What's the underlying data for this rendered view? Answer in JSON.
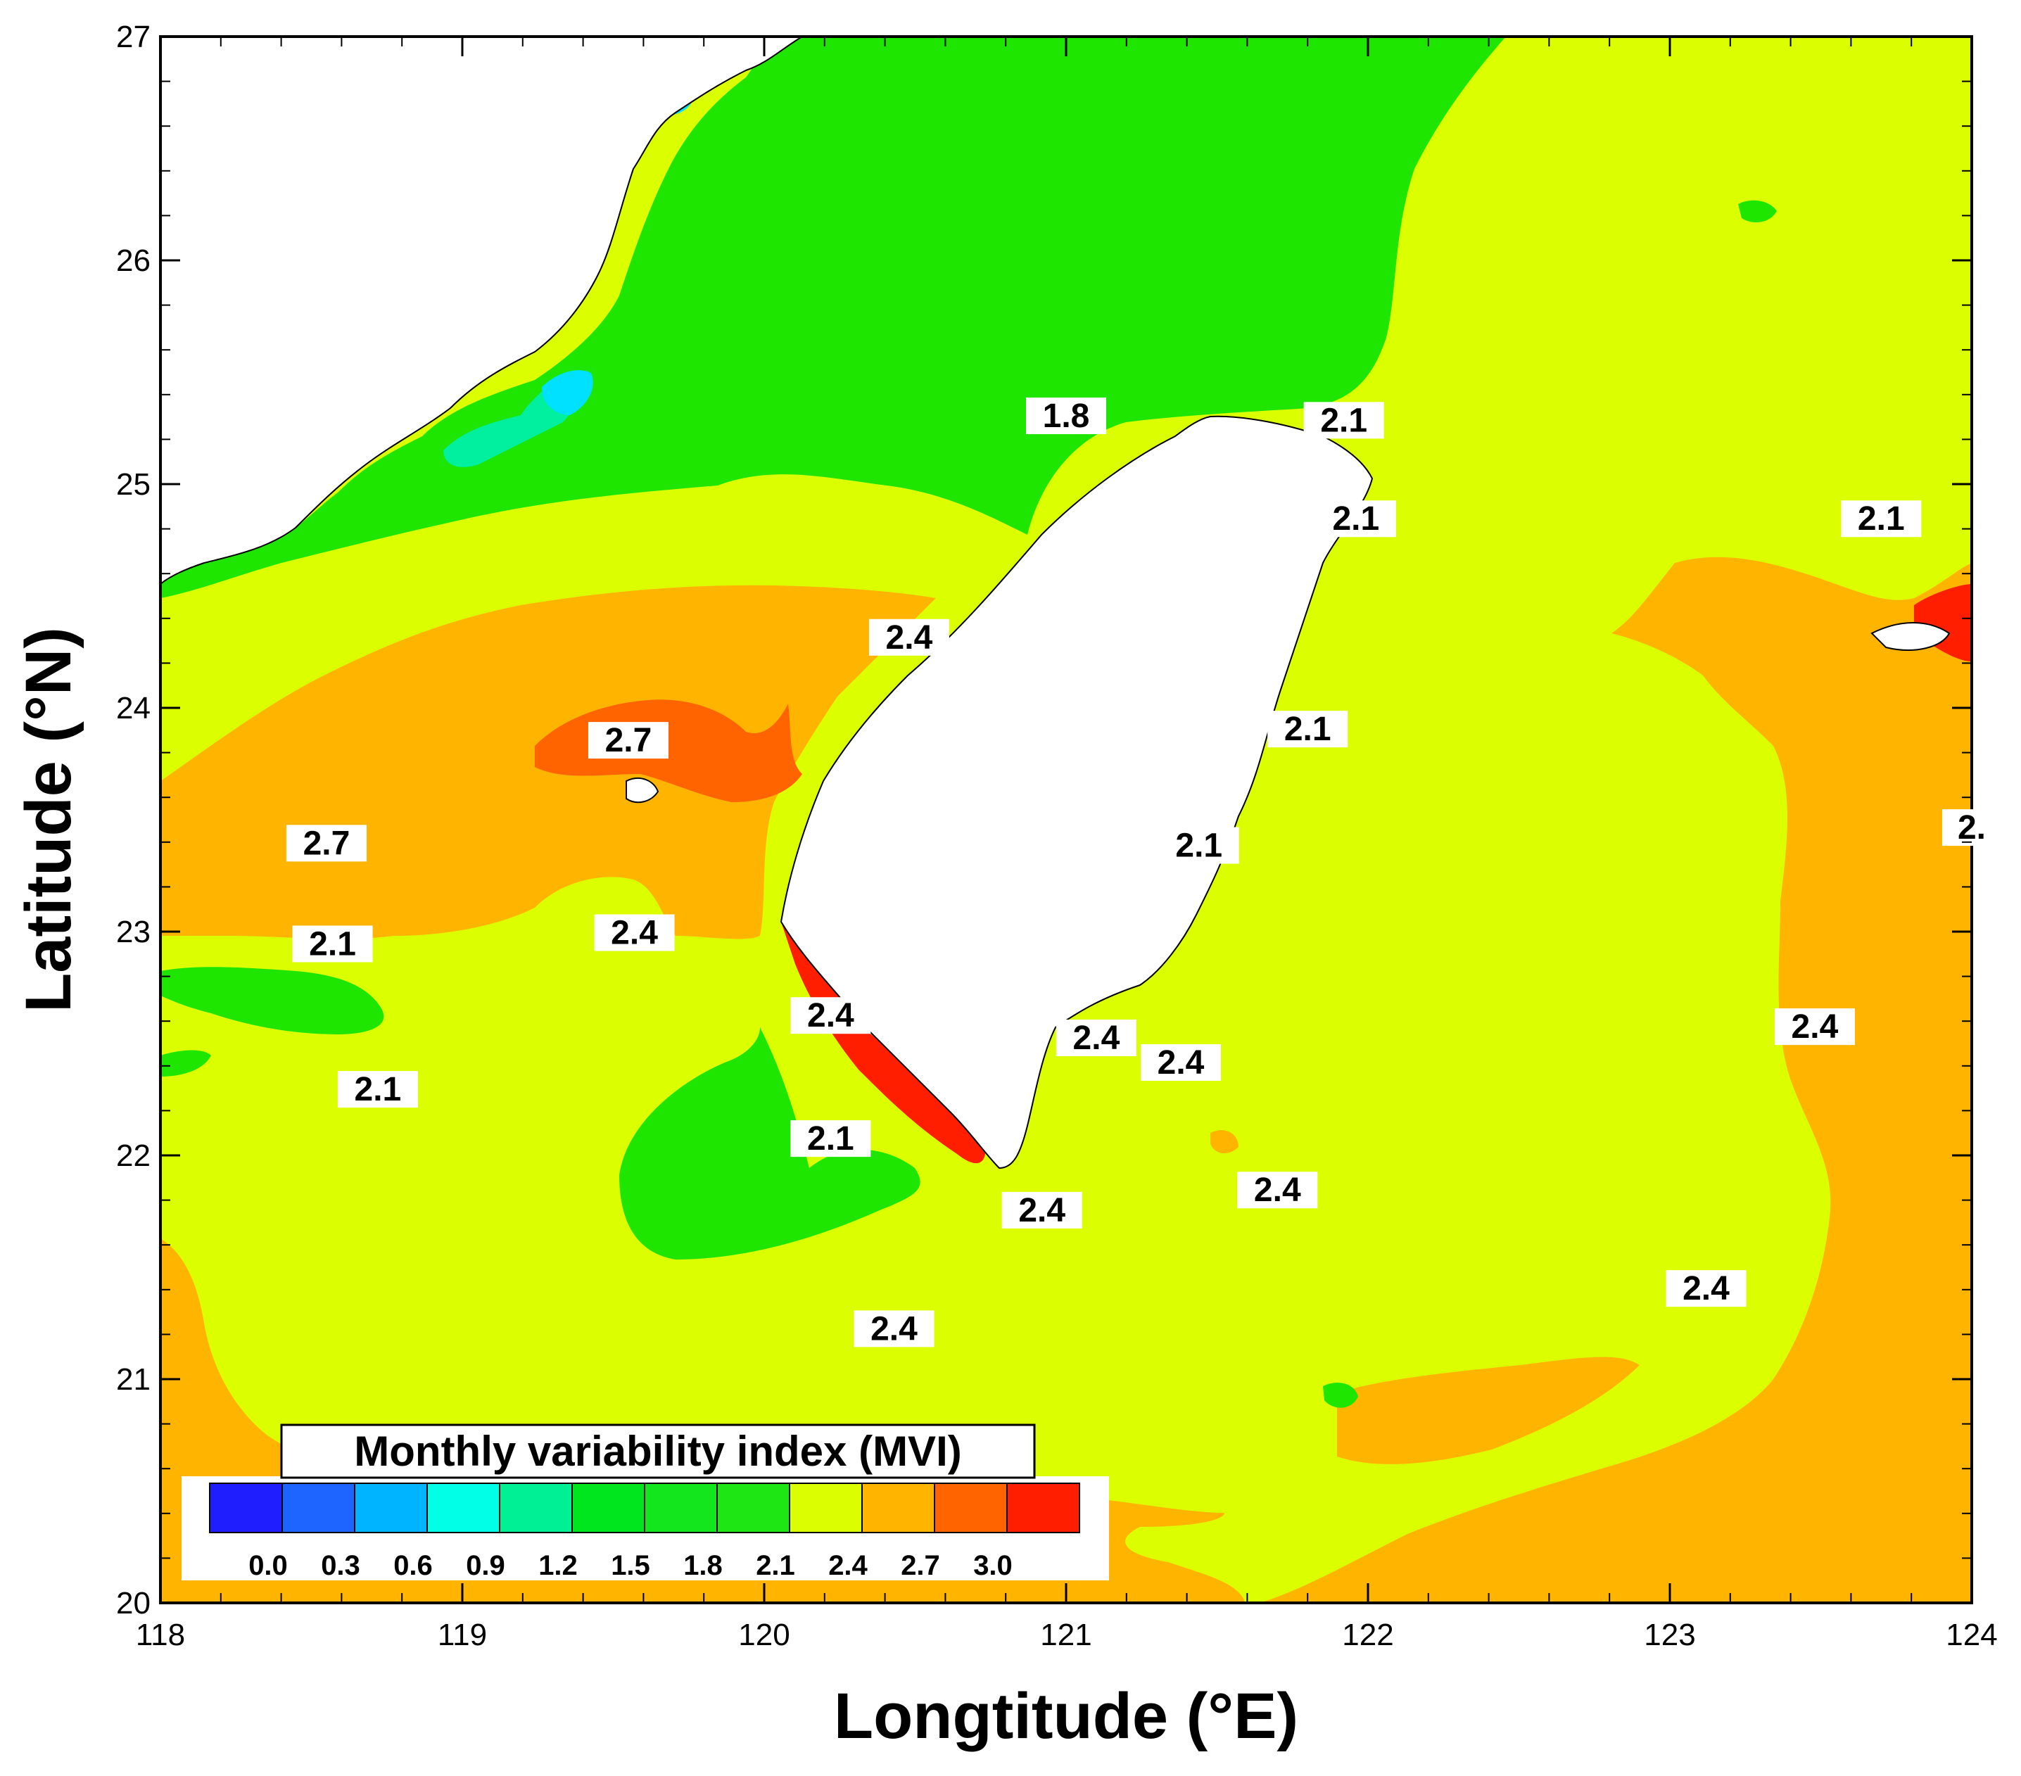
{
  "figure": {
    "x_axis_title": "Longtitude (°E)",
    "y_axis_title": "Latitude (°N)",
    "x_ticks": [
      "118",
      "119",
      "120",
      "121",
      "122",
      "123",
      "124"
    ],
    "y_ticks": [
      "20",
      "21",
      "22",
      "23",
      "24",
      "25",
      "26",
      "27"
    ],
    "x_range": [
      118,
      124
    ],
    "y_range": [
      20,
      27
    ]
  },
  "colors": {
    "c_1_8_2_1": "#1ee600",
    "c_2_1_2_4": "#dcff00",
    "c_2_4_2_7": "#ffb400",
    "c_2_7_3_0": "#ff6400",
    "c_3_0": "#ff1e00",
    "c_1_2_1_5": "#00f0a0",
    "c_0_9_1_2": "#00e0ff",
    "land": "#ffffff"
  },
  "legend": {
    "title": "Monthly variability index (MVI)",
    "swatches": [
      "#1e1eff",
      "#1e64ff",
      "#00b4ff",
      "#00ffe6",
      "#00f096",
      "#00e61e",
      "#14e61e",
      "#1ee614",
      "#dcff00",
      "#ffb400",
      "#ff6400",
      "#ff1e00"
    ],
    "tick_labels": [
      "0.0",
      "0.3",
      "0.6",
      "0.9",
      "1.2",
      "1.5",
      "1.8",
      "2.1",
      "2.4",
      "2.7",
      "3.0"
    ]
  },
  "contour_labels": [
    {
      "text": "1.8",
      "lon": 121.0,
      "lat": 25.28
    },
    {
      "text": "2.1",
      "lon": 121.92,
      "lat": 25.26
    },
    {
      "text": "2.1",
      "lon": 121.96,
      "lat": 24.82
    },
    {
      "text": "2.1",
      "lon": 123.7,
      "lat": 24.82
    },
    {
      "text": "2.4",
      "lon": 120.48,
      "lat": 24.29
    },
    {
      "text": "2.7",
      "lon": 119.55,
      "lat": 23.83
    },
    {
      "text": "2.1",
      "lon": 121.8,
      "lat": 23.88
    },
    {
      "text": "2.",
      "lon": 124.0,
      "lat": 23.44
    },
    {
      "text": "2.7",
      "lon": 118.55,
      "lat": 23.37
    },
    {
      "text": "2.1",
      "lon": 121.44,
      "lat": 23.36
    },
    {
      "text": "2.4",
      "lon": 119.57,
      "lat": 22.97
    },
    {
      "text": "2.1",
      "lon": 118.57,
      "lat": 22.92
    },
    {
      "text": "2.4",
      "lon": 120.22,
      "lat": 22.6
    },
    {
      "text": "2.4",
      "lon": 121.1,
      "lat": 22.5
    },
    {
      "text": "2.4",
      "lon": 121.38,
      "lat": 22.39
    },
    {
      "text": "2.4",
      "lon": 123.48,
      "lat": 22.55
    },
    {
      "text": "2.1",
      "lon": 118.72,
      "lat": 22.27
    },
    {
      "text": "2.1",
      "lon": 120.22,
      "lat": 22.05
    },
    {
      "text": "2.4",
      "lon": 121.7,
      "lat": 21.82
    },
    {
      "text": "2.4",
      "lon": 120.92,
      "lat": 21.73
    },
    {
      "text": "2.4",
      "lon": 123.12,
      "lat": 21.38
    },
    {
      "text": "2.4",
      "lon": 120.43,
      "lat": 21.2
    }
  ]
}
